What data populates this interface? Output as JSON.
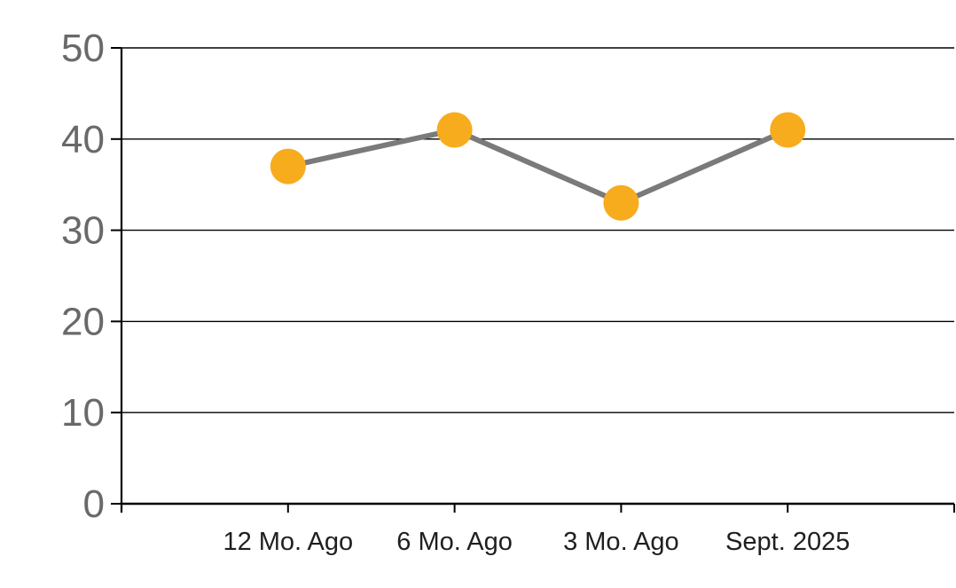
{
  "chart_data": {
    "type": "line",
    "title": "",
    "xlabel": "",
    "ylabel": "",
    "categories": [
      "12 Mo. Ago",
      "6 Mo. Ago",
      "3 Mo. Ago",
      "Sept. 2025"
    ],
    "series": [
      {
        "name": "value",
        "values": [
          37,
          41,
          33,
          41
        ]
      }
    ],
    "ylim": [
      0,
      50
    ],
    "yticks": [
      0,
      10,
      20,
      30,
      40,
      50
    ],
    "grid": true,
    "legend": false,
    "colors": {
      "marker": "#F7AC1E",
      "line": "#7A7A7A",
      "gridline": "#000000",
      "axis": "#000000",
      "ytick_label": "#696969",
      "xtick_label": "#1F1F1F",
      "background": "#FFFFFF"
    }
  }
}
